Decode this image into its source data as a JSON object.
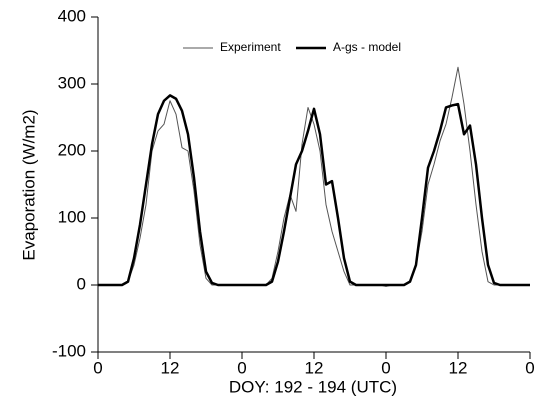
{
  "chart_data": {
    "type": "line",
    "x_label": "DOY: 192 - 194 (UTC)",
    "y_label": "Evaporation (W/m2)",
    "legend": "top",
    "x": [
      0,
      1,
      2,
      3,
      4,
      5,
      6,
      7,
      8,
      9,
      10,
      11,
      12,
      13,
      14,
      15,
      16,
      17,
      18,
      19,
      20,
      21,
      22,
      23,
      24,
      25,
      26,
      27,
      28,
      29,
      30,
      31,
      32,
      33,
      34,
      35,
      36,
      37,
      38,
      39,
      40,
      41,
      42,
      43,
      44,
      45,
      46,
      47,
      48,
      49,
      50,
      51,
      52,
      53,
      54,
      55,
      56,
      57,
      58,
      59,
      60,
      61,
      62,
      63,
      64,
      65,
      66,
      67,
      68,
      69,
      70,
      71,
      72
    ],
    "series": [
      {
        "name": "Experiment",
        "color": "#555555",
        "width": 1,
        "values": [
          0,
          0,
          0,
          0,
          0,
          5,
          30,
          70,
          120,
          200,
          230,
          240,
          275,
          255,
          205,
          200,
          140,
          60,
          10,
          0,
          0,
          0,
          0,
          0,
          0,
          0,
          0,
          0,
          0,
          10,
          50,
          100,
          135,
          110,
          210,
          265,
          240,
          200,
          120,
          80,
          50,
          20,
          0,
          0,
          0,
          0,
          0,
          0,
          -2,
          0,
          0,
          0,
          5,
          30,
          80,
          150,
          180,
          215,
          240,
          280,
          325,
          270,
          200,
          120,
          50,
          5,
          0,
          0,
          0,
          0,
          0,
          0,
          0
        ]
      },
      {
        "name": "A-gs - model",
        "color": "#000000",
        "width": 2.5,
        "values": [
          0,
          0,
          0,
          0,
          0,
          5,
          40,
          90,
          150,
          210,
          255,
          275,
          283,
          278,
          260,
          225,
          160,
          80,
          20,
          3,
          0,
          0,
          0,
          0,
          0,
          0,
          0,
          0,
          0,
          5,
          35,
          80,
          130,
          180,
          200,
          230,
          263,
          225,
          150,
          155,
          100,
          40,
          5,
          0,
          0,
          0,
          0,
          0,
          0,
          0,
          0,
          0,
          5,
          30,
          100,
          175,
          200,
          230,
          265,
          268,
          270,
          225,
          238,
          180,
          100,
          30,
          3,
          0,
          0,
          0,
          0,
          0,
          0
        ]
      }
    ],
    "xlim": [
      0,
      72
    ],
    "xticks": [
      0,
      12,
      {
        "value": 24,
        "label": "0"
      },
      {
        "value": 36,
        "label": "12"
      },
      {
        "value": 48,
        "label": "0"
      },
      {
        "value": 60,
        "label": "12"
      },
      {
        "value": 72,
        "label": "0"
      }
    ],
    "ylim": [
      -100,
      400
    ],
    "yticks": [
      -100,
      0,
      100,
      200,
      300,
      400
    ],
    "grid": false
  }
}
